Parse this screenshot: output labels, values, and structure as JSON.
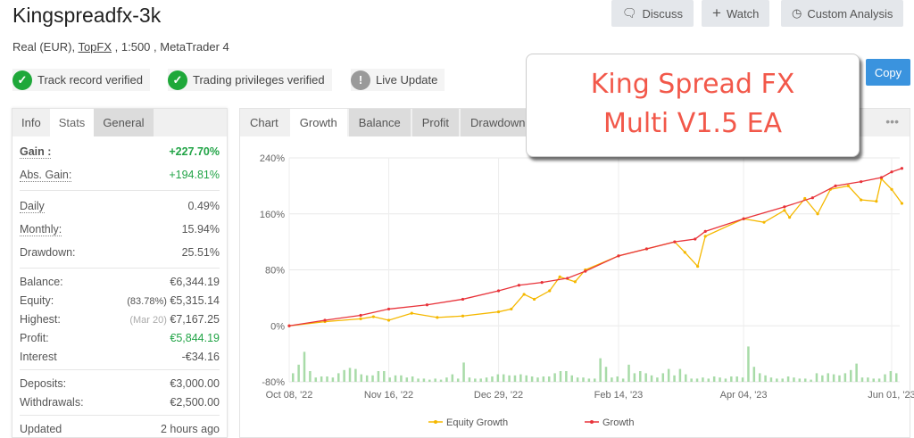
{
  "header": {
    "title": "Kingspreadfx-3k",
    "subtitle_prefix": "Real (EUR), ",
    "broker": "TopFX",
    "subtitle_suffix": " , 1:500 , MetaTrader 4",
    "buttons": {
      "discuss": "Discuss",
      "watch": "Watch",
      "custom": "Custom Analysis"
    },
    "badges": [
      "Track record verified",
      "Trading privileges verified",
      "Live Update"
    ],
    "copy": "Copy"
  },
  "overlay": {
    "line1": "King Spread FX",
    "line2": "Multi V1.5 EA"
  },
  "stats": {
    "tabs": [
      "Info",
      "Stats",
      "General"
    ],
    "gain_label": "Gain :",
    "gain": "+227.70%",
    "abs_label": "Abs. Gain:",
    "abs": "+194.81%",
    "daily_label": "Daily",
    "daily": "0.49%",
    "monthly_label": "Monthly:",
    "monthly": "15.94%",
    "dd_label": "Drawdown:",
    "dd": "25.51%",
    "balance_label": "Balance:",
    "balance": "€6,344.19",
    "equity_label": "Equity:",
    "equity_pct": "(83.78%)",
    "equity": "€5,315.14",
    "highest_label": "Highest:",
    "highest_date": "(Mar 20)",
    "highest": "€7,167.25",
    "profit_label": "Profit:",
    "profit": "€5,844.19",
    "interest_label": "Interest",
    "interest": "-€34.16",
    "deposits_label": "Deposits:",
    "deposits": "€3,000.00",
    "withdrawals_label": "Withdrawals:",
    "withdrawals": "€2,500.00",
    "updated_label": "Updated",
    "updated": "2 hours ago"
  },
  "chart_tabs": [
    "Chart",
    "Growth",
    "Balance",
    "Profit",
    "Drawdown"
  ],
  "colors": {
    "equity": "#f5b800",
    "growth": "#e8333a",
    "bars": "#a8dba8",
    "accent": "#3a93de"
  },
  "chart_data": {
    "type": "line",
    "ylim": [
      -80,
      240
    ],
    "yticks": [
      "240%",
      "160%",
      "80%",
      "0%",
      "-80%"
    ],
    "ytick_values": [
      240,
      160,
      80,
      0,
      -80
    ],
    "xticks": [
      "Oct 08, '22",
      "Nov 16, '22",
      "Dec 29, '22",
      "Feb 14, '23",
      "Apr 04, '23",
      "Jun 01, '23"
    ],
    "xtick_dates": [
      "2022-10-08",
      "2022-11-16",
      "2022-12-29",
      "2023-02-14",
      "2023-04-04",
      "2023-06-01"
    ],
    "legend": "bottom",
    "series": [
      {
        "name": "Equity Growth",
        "color": "#f5b800",
        "points": [
          [
            "2022-10-08",
            0
          ],
          [
            "2022-10-22",
            6
          ],
          [
            "2022-11-05",
            10
          ],
          [
            "2022-11-10",
            13
          ],
          [
            "2022-11-16",
            8
          ],
          [
            "2022-11-25",
            18
          ],
          [
            "2022-12-05",
            12
          ],
          [
            "2022-12-15",
            14
          ],
          [
            "2022-12-29",
            20
          ],
          [
            "2023-01-03",
            24
          ],
          [
            "2023-01-08",
            45
          ],
          [
            "2023-01-12",
            38
          ],
          [
            "2023-01-18",
            50
          ],
          [
            "2023-01-22",
            70
          ],
          [
            "2023-01-28",
            63
          ],
          [
            "2023-02-01",
            80
          ],
          [
            "2023-02-14",
            100
          ],
          [
            "2023-02-25",
            110
          ],
          [
            "2023-03-08",
            120
          ],
          [
            "2023-03-12",
            105
          ],
          [
            "2023-03-17",
            85
          ],
          [
            "2023-03-20",
            128
          ],
          [
            "2023-04-04",
            153
          ],
          [
            "2023-04-12",
            148
          ],
          [
            "2023-04-20",
            165
          ],
          [
            "2023-04-22",
            155
          ],
          [
            "2023-04-28",
            182
          ],
          [
            "2023-05-03",
            160
          ],
          [
            "2023-05-08",
            195
          ],
          [
            "2023-05-15",
            200
          ],
          [
            "2023-05-20",
            180
          ],
          [
            "2023-05-26",
            178
          ],
          [
            "2023-05-28",
            210
          ],
          [
            "2023-06-01",
            195
          ],
          [
            "2023-06-05",
            175
          ]
        ]
      },
      {
        "name": "Growth",
        "color": "#e8333a",
        "points": [
          [
            "2022-10-08",
            0
          ],
          [
            "2022-10-22",
            8
          ],
          [
            "2022-11-05",
            15
          ],
          [
            "2022-11-16",
            24
          ],
          [
            "2022-12-01",
            30
          ],
          [
            "2022-12-15",
            38
          ],
          [
            "2022-12-29",
            50
          ],
          [
            "2023-01-06",
            58
          ],
          [
            "2023-01-15",
            62
          ],
          [
            "2023-01-25",
            68
          ],
          [
            "2023-02-01",
            78
          ],
          [
            "2023-02-14",
            100
          ],
          [
            "2023-02-25",
            110
          ],
          [
            "2023-03-08",
            120
          ],
          [
            "2023-03-16",
            124
          ],
          [
            "2023-03-20",
            135
          ],
          [
            "2023-04-04",
            153
          ],
          [
            "2023-04-20",
            170
          ],
          [
            "2023-05-01",
            183
          ],
          [
            "2023-05-10",
            200
          ],
          [
            "2023-05-20",
            206
          ],
          [
            "2023-05-28",
            212
          ],
          [
            "2023-06-01",
            220
          ],
          [
            "2023-06-05",
            225
          ]
        ]
      }
    ],
    "bars": [
      8,
      16,
      28,
      10,
      4,
      5,
      5,
      4,
      8,
      11,
      13,
      12,
      7,
      6,
      6,
      10,
      10,
      4,
      6,
      6,
      4,
      5,
      3,
      3,
      2,
      3,
      2,
      4,
      7,
      3,
      18,
      4,
      3,
      3,
      4,
      5,
      7,
      7,
      6,
      6,
      7,
      6,
      5,
      4,
      5,
      5,
      8,
      10,
      10,
      6,
      4,
      4,
      3,
      3,
      22,
      14,
      4,
      5,
      3,
      16,
      8,
      10,
      8,
      6,
      4,
      8,
      12,
      6,
      12,
      7,
      3,
      3,
      4,
      3,
      5,
      4,
      3,
      5,
      5,
      4,
      33,
      14,
      8,
      6,
      4,
      3,
      3,
      5,
      4,
      3,
      3,
      2,
      8,
      6,
      8,
      7,
      6,
      8,
      11,
      17,
      4,
      4,
      3,
      3,
      7,
      10,
      8
    ]
  }
}
